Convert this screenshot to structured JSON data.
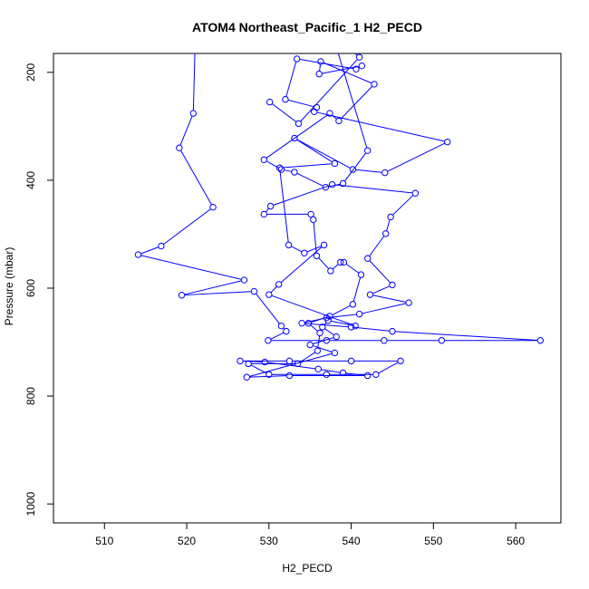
{
  "chart_data": {
    "type": "scatter",
    "title": "ATOM4 Northeast_Pacific_1 H2_PECD",
    "xlabel": "H2_PECD",
    "ylabel": "Pressure (mbar)",
    "xlim": [
      503.8,
      565.5
    ],
    "ylim": [
      1035,
      165
    ],
    "y_reversed": true,
    "x_ticks": [
      510,
      520,
      530,
      540,
      550,
      560
    ],
    "y_ticks": [
      200,
      400,
      600,
      800,
      1000
    ],
    "grid": false,
    "legend": "none",
    "series": [
      {
        "color": "#0000ff",
        "points": [
          [
            521.0,
            160
          ],
          [
            520.8,
            276
          ],
          [
            519.1,
            340
          ],
          [
            523.2,
            450
          ],
          [
            516.9,
            522
          ],
          [
            514.1,
            538
          ],
          [
            527.0,
            585
          ],
          [
            519.4,
            613
          ],
          [
            528.2,
            606
          ],
          [
            531.5,
            670
          ],
          [
            532.1,
            680
          ],
          [
            529.9,
            697
          ],
          [
            537.0,
            697
          ],
          [
            544.0,
            697
          ],
          [
            551.0,
            697
          ],
          [
            563.0,
            697
          ],
          [
            545.0,
            680
          ],
          [
            540.0,
            672
          ],
          [
            534.0,
            665
          ],
          [
            537.0,
            655
          ],
          [
            541.0,
            648
          ],
          [
            547.0,
            627
          ],
          [
            542.3,
            612
          ],
          [
            545.0,
            594
          ],
          [
            542.0,
            545
          ],
          [
            544.2,
            499
          ],
          [
            544.8,
            468
          ],
          [
            547.8,
            424
          ],
          [
            537.7,
            408
          ],
          [
            530.2,
            448
          ],
          [
            529.4,
            463
          ],
          [
            535.1,
            463
          ],
          [
            535.4,
            473
          ],
          [
            535.8,
            540
          ],
          [
            537.5,
            568
          ],
          [
            538.7,
            552
          ],
          [
            539.1,
            552
          ],
          [
            541.2,
            575
          ],
          [
            540.2,
            630
          ],
          [
            537.4,
            652
          ],
          [
            534.8,
            665
          ],
          [
            536.2,
            683
          ],
          [
            535.9,
            716
          ],
          [
            533.5,
            740
          ],
          [
            527.5,
            740
          ],
          [
            530.0,
            760
          ],
          [
            537.0,
            760
          ],
          [
            543.0,
            760
          ],
          [
            546.0,
            735
          ],
          [
            540.0,
            735
          ],
          [
            532.5,
            735
          ],
          [
            526.5,
            735
          ],
          [
            529.5,
            737
          ],
          [
            536.0,
            750
          ],
          [
            539.0,
            757
          ],
          [
            542.0,
            762
          ],
          [
            532.5,
            762
          ],
          [
            527.3,
            765
          ],
          [
            538.0,
            720
          ],
          [
            535.0,
            705
          ],
          [
            538.2,
            690
          ],
          [
            536.5,
            672
          ],
          [
            537.2,
            660
          ],
          [
            540.5,
            670
          ],
          [
            530.0,
            612
          ],
          [
            531.2,
            593
          ],
          [
            536.7,
            520
          ],
          [
            534.3,
            535
          ],
          [
            532.4,
            520
          ],
          [
            531.3,
            377
          ],
          [
            538.0,
            369
          ],
          [
            533.1,
            322
          ],
          [
            540.2,
            380
          ],
          [
            544.1,
            386
          ],
          [
            551.7,
            329
          ],
          [
            535.5,
            273
          ],
          [
            535.8,
            265
          ],
          [
            532.0,
            250
          ],
          [
            533.4,
            175
          ],
          [
            540.6,
            194
          ],
          [
            541.3,
            188
          ],
          [
            536.1,
            203
          ],
          [
            536.3,
            180
          ],
          [
            542.8,
            222
          ],
          [
            538.5,
            290
          ],
          [
            537.4,
            276
          ],
          [
            529.4,
            362
          ],
          [
            531.5,
            380
          ],
          [
            533.1,
            385
          ],
          [
            536.9,
            413
          ],
          [
            539.0,
            406
          ],
          [
            542.0,
            345
          ],
          [
            537.7,
            128
          ],
          [
            541.0,
            172
          ],
          [
            533.6,
            295
          ],
          [
            530.1,
            255
          ]
        ]
      }
    ]
  }
}
